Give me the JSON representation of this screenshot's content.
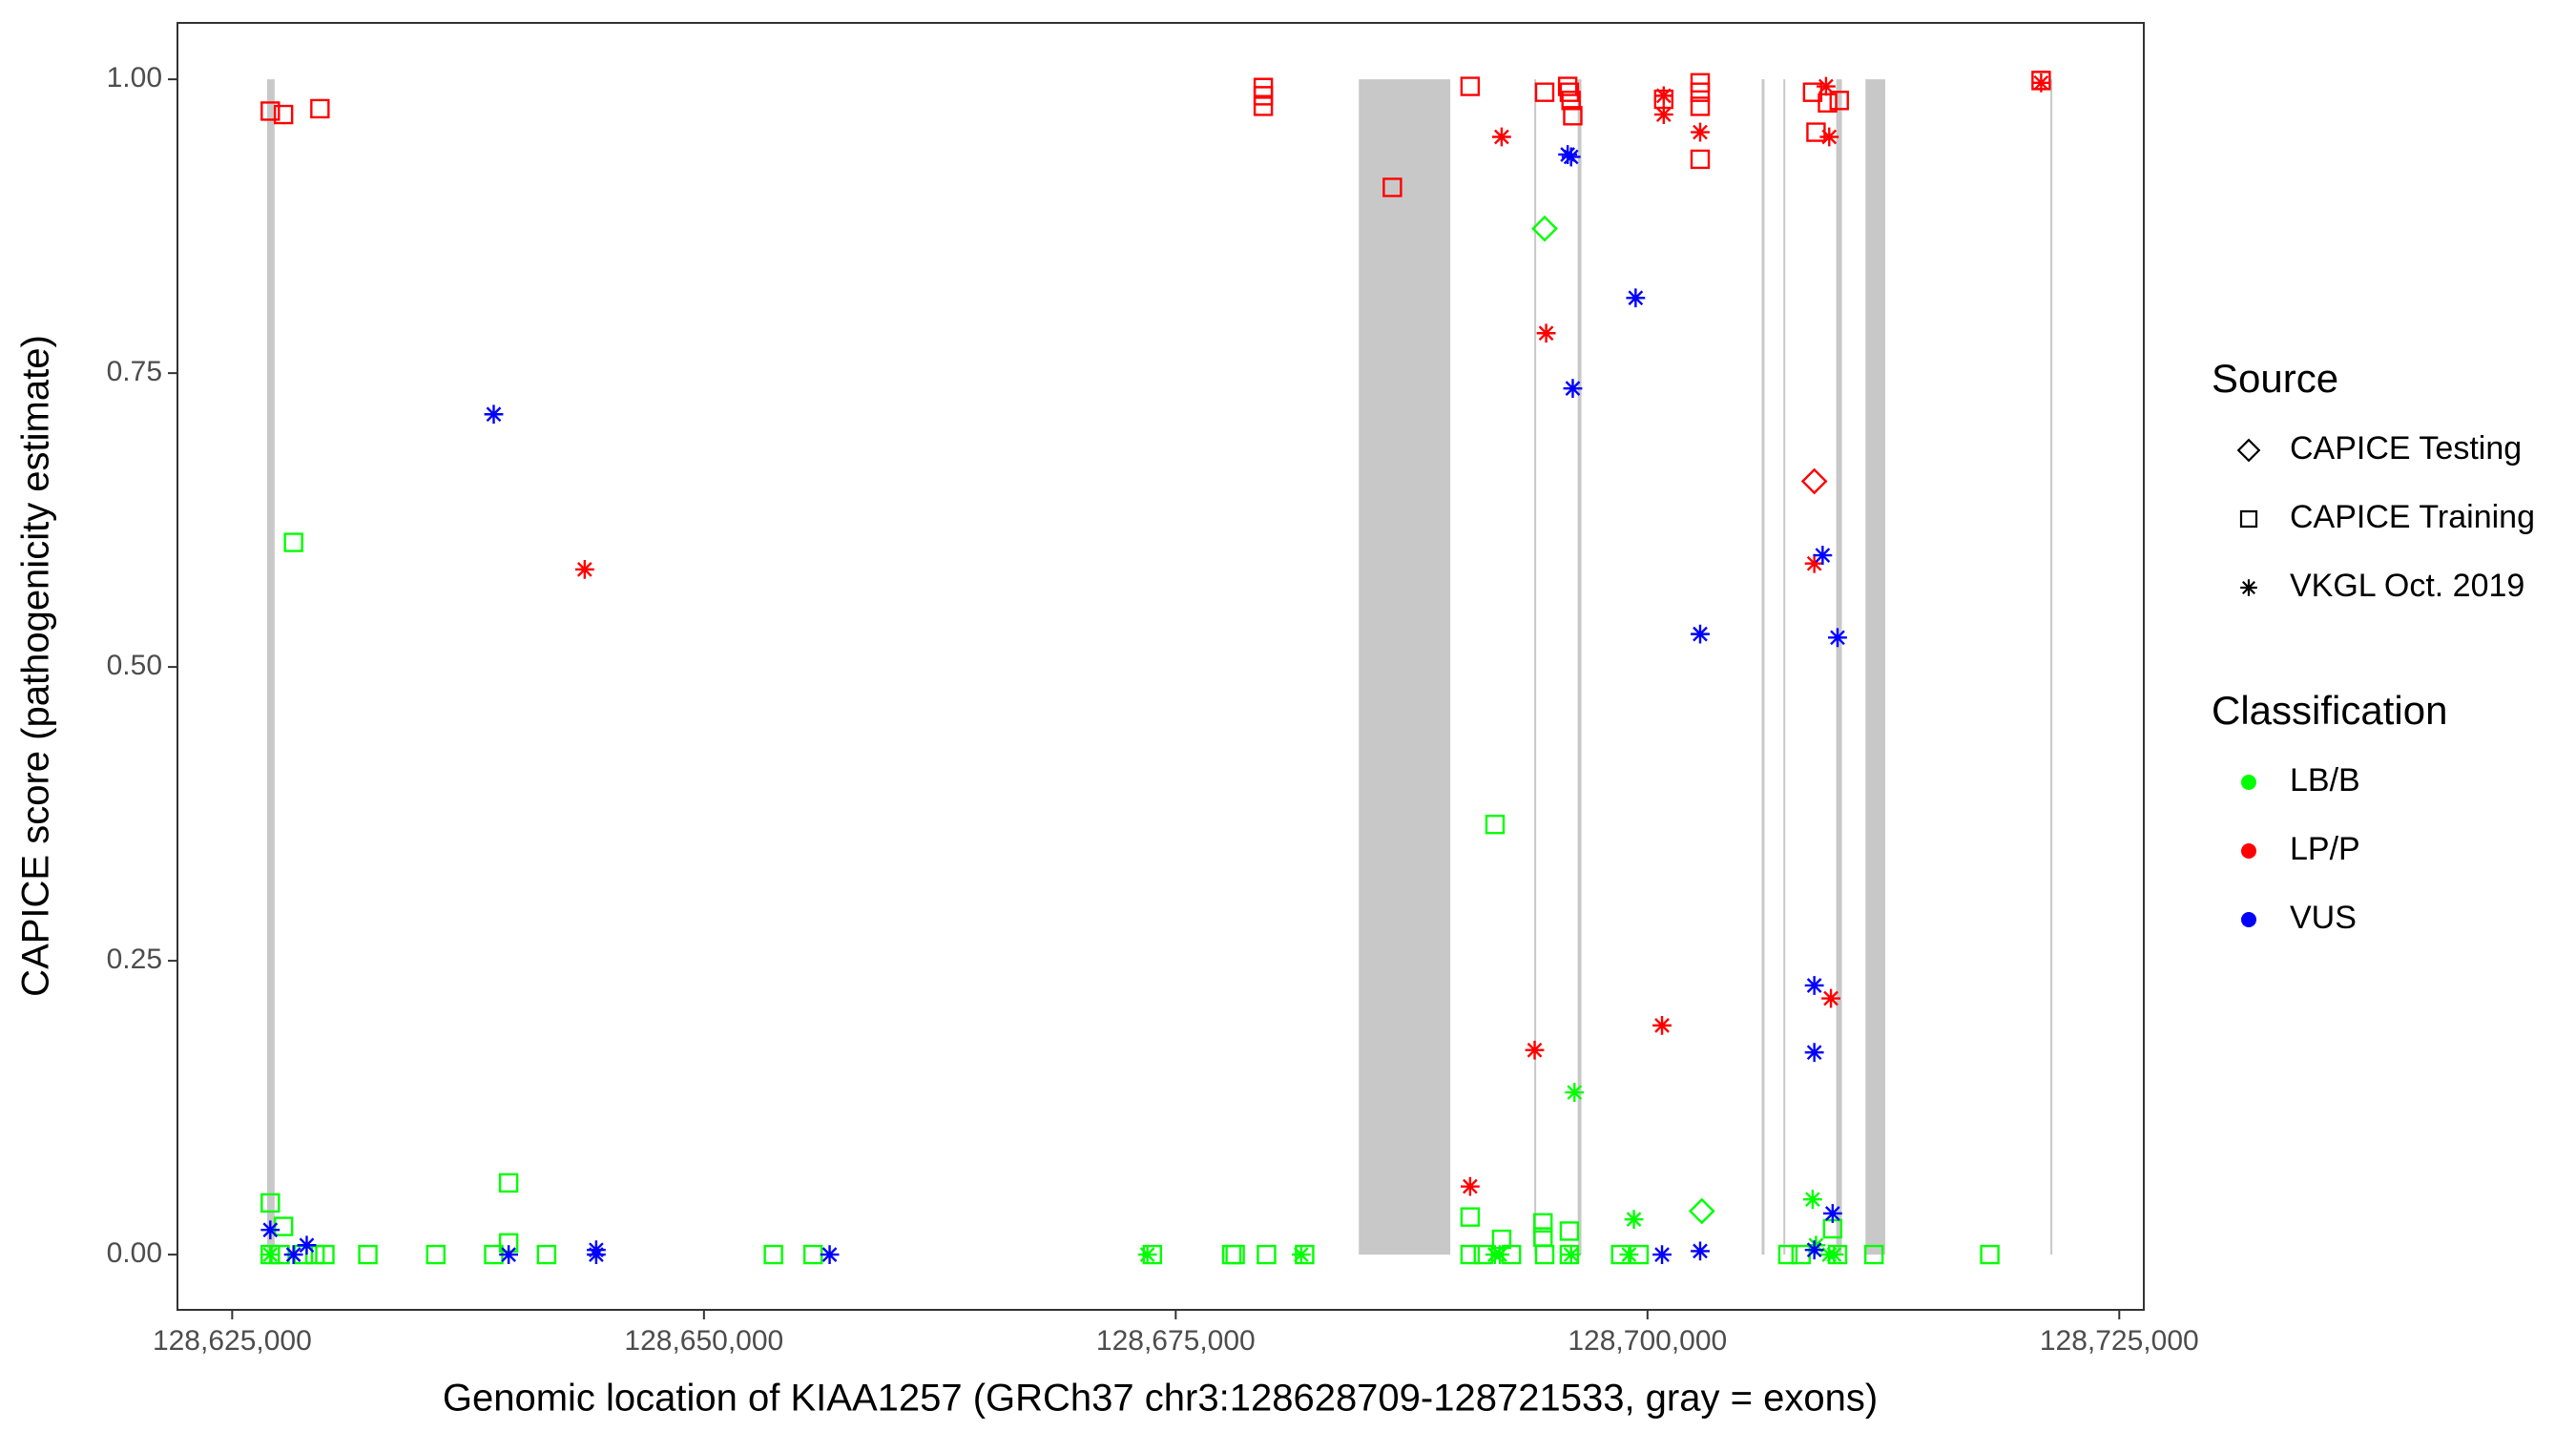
{
  "chart_data": {
    "type": "scatter",
    "xlabel": "Genomic location of KIAA1257 (GRCh37 chr3:128628709-128721533, gray = exons)",
    "ylabel": "CAPICE score (pathogenicity estimate)",
    "xlim": [
      128622100,
      128726300
    ],
    "ylim": [
      -0.047,
      1.048
    ],
    "xticks": [
      {
        "value": 128625000,
        "label": "128,625,000"
      },
      {
        "value": 128650000,
        "label": "128,650,000"
      },
      {
        "value": 128675000,
        "label": "128,675,000"
      },
      {
        "value": 128700000,
        "label": "128,700,000"
      },
      {
        "value": 128725000,
        "label": "128,725,000"
      }
    ],
    "yticks": [
      {
        "value": 0,
        "label": "0.00"
      },
      {
        "value": 0.25,
        "label": "0.25"
      },
      {
        "value": 0.5,
        "label": "0.50"
      },
      {
        "value": 0.75,
        "label": "0.75"
      },
      {
        "value": 1,
        "label": "1.00"
      }
    ],
    "exon_color": "#c8c8c8",
    "exons": [
      [
        128626850,
        128627250
      ],
      [
        128684700,
        128689550
      ],
      [
        128694000,
        128694100
      ],
      [
        128696300,
        128696500
      ],
      [
        128706050,
        128706200
      ],
      [
        128707200,
        128707300
      ],
      [
        128710000,
        128710300
      ],
      [
        128711550,
        128712600
      ],
      [
        128721350,
        128721450
      ]
    ],
    "legends": [
      {
        "title": "Source",
        "items": [
          {
            "name": "CAPICE Testing",
            "shape": "diamond"
          },
          {
            "name": "CAPICE Training",
            "shape": "square"
          },
          {
            "name": "VKGL Oct. 2019",
            "shape": "asterisk"
          }
        ]
      },
      {
        "title": "Classification",
        "items": [
          {
            "name": "LB/B",
            "color": "#00ff00"
          },
          {
            "name": "LP/P",
            "color": "#ff0000"
          },
          {
            "name": "VUS",
            "color": "#0000ff"
          }
        ]
      }
    ],
    "series": [
      {
        "source": "CAPICE Training",
        "classification": "LB/B",
        "x": [
          128627020,
          128627720,
          128628250,
          128627020,
          128627540,
          128628770,
          128629390,
          128629910,
          128632190,
          128635790,
          128638860,
          128639650,
          128639650,
          128641660,
          128653680,
          128655780,
          128673760,
          128677970,
          128678150,
          128679810,
          128681830,
          128690600,
          128690600,
          128691300,
          128691920,
          128692270,
          128692790,
          128694460,
          128694460,
          128694550,
          128695860,
          128695860,
          128698580,
          128699550,
          128707440,
          128708140,
          128709810,
          128710070,
          128712000,
          128718140
        ],
        "values": [
          0.044,
          0.024,
          0.606,
          0,
          0,
          0,
          0,
          0,
          0,
          0,
          0,
          0.061,
          0.01,
          0,
          0,
          0,
          0,
          0,
          0,
          0,
          0,
          0.032,
          0,
          0,
          0.366,
          0.013,
          0,
          0.027,
          0.015,
          0,
          0.02,
          0,
          0,
          0,
          0,
          0,
          0.022,
          0,
          0,
          0
        ]
      },
      {
        "source": "VKGL Oct. 2019",
        "classification": "LB/B",
        "x": [
          128627020,
          128673500,
          128681650,
          128691910,
          128692180,
          128695950,
          128696130,
          128699020,
          128699280,
          128708750,
          128709630,
          128709890,
          128708930
        ],
        "values": [
          0,
          0,
          0,
          0,
          0,
          0,
          0.138,
          0,
          0.03,
          0.047,
          0,
          0,
          0.008
        ]
      },
      {
        "source": "CAPICE Testing",
        "classification": "LB/B",
        "x": [
          128694550,
          128702880
        ],
        "values": [
          0.873,
          0.037
        ]
      },
      {
        "source": "CAPICE Training",
        "classification": "LP/P",
        "x": [
          128627020,
          128627720,
          128629650,
          128679640,
          128679640,
          128679640,
          128686480,
          128690600,
          128694550,
          128695770,
          128695860,
          128695950,
          128696040,
          128700860,
          128702790,
          128702790,
          128702790,
          128702790,
          128708750,
          128708930,
          128709540,
          128710160,
          128720860
        ],
        "values": [
          0.973,
          0.97,
          0.975,
          0.993,
          0.986,
          0.977,
          0.908,
          0.994,
          0.989,
          0.994,
          0.989,
          0.982,
          0.969,
          0.983,
          0.997,
          0.989,
          0.977,
          0.932,
          0.989,
          0.955,
          0.98,
          0.982,
          0.999
        ]
      },
      {
        "source": "CAPICE Testing",
        "classification": "LP/P",
        "x": [
          128708840
        ],
        "values": [
          0.658
        ]
      },
      {
        "source": "VKGL Oct. 2019",
        "classification": "LP/P",
        "x": [
          128643680,
          128690600,
          128692270,
          128694020,
          128694630,
          128700770,
          128700860,
          128700860,
          128702790,
          128708840,
          128709460,
          128709630,
          128709720,
          128720860
        ],
        "values": [
          0.583,
          0.058,
          0.951,
          0.174,
          0.784,
          0.195,
          0.986,
          0.97,
          0.955,
          0.588,
          0.994,
          0.951,
          0.218,
          0.997
        ]
      },
      {
        "source": "VKGL Oct. 2019",
        "classification": "VUS",
        "x": [
          128627020,
          128628250,
          128628950,
          128638860,
          128639650,
          128644290,
          128644290,
          128656660,
          128695770,
          128695950,
          128696040,
          128699370,
          128700770,
          128702790,
          128702790,
          128708840,
          128708840,
          128708840,
          128709280,
          128709810,
          128710070
        ],
        "values": [
          0.021,
          0,
          0.008,
          0.715,
          0,
          0.004,
          0,
          0,
          0.936,
          0.934,
          0.737,
          0.814,
          0,
          0.528,
          0.003,
          0.229,
          0.172,
          0.004,
          0.595,
          0.035,
          0.525
        ]
      }
    ]
  }
}
